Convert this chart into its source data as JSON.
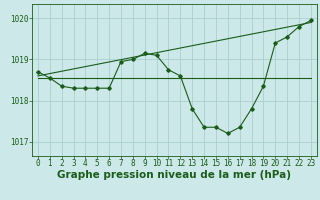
{
  "xlabel": "Graphe pression niveau de la mer (hPa)",
  "bg_color": "#cce8e8",
  "grid_color": "#aad0d0",
  "line_color": "#1a5c1a",
  "x_ticks": [
    0,
    1,
    2,
    3,
    4,
    5,
    6,
    7,
    8,
    9,
    10,
    11,
    12,
    13,
    14,
    15,
    16,
    17,
    18,
    19,
    20,
    21,
    22,
    23
  ],
  "y_ticks": [
    1017,
    1018,
    1019,
    1020
  ],
  "ylim": [
    1016.65,
    1020.35
  ],
  "xlim": [
    -0.5,
    23.5
  ],
  "curve1": [
    1018.7,
    1018.55,
    1018.35,
    1018.3,
    1018.3,
    1018.3,
    1018.3,
    1018.95,
    1019.0,
    1019.15,
    1019.1,
    1018.75,
    1018.6,
    1017.8,
    1017.35,
    1017.35,
    1017.2,
    1017.35,
    1017.8,
    1018.35,
    1019.4,
    1019.55,
    1019.8,
    1019.95
  ],
  "curve2_x": [
    0,
    23
  ],
  "curve2_y": [
    1018.55,
    1018.55
  ],
  "curve3_x": [
    0,
    23
  ],
  "curve3_y": [
    1018.6,
    1019.9
  ],
  "xlabel_fontsize": 7.5,
  "tick_fontsize": 5.5,
  "ylabel_fontsize": 5.5
}
